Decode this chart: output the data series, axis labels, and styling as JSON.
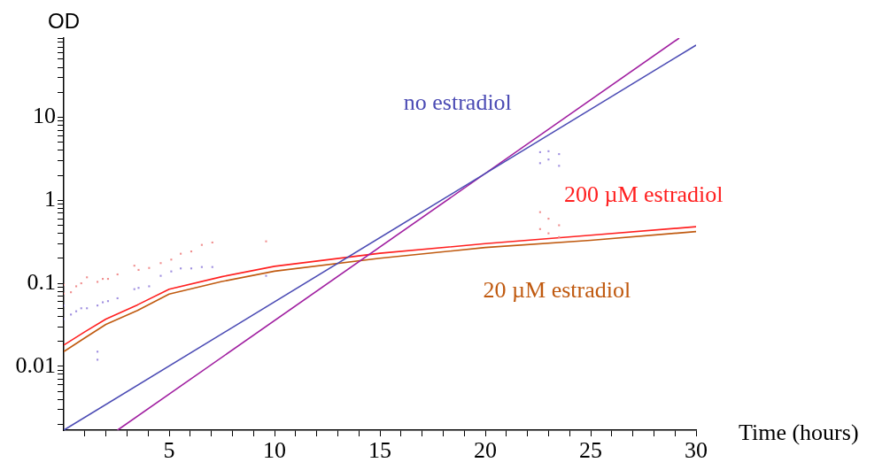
{
  "chart_data": {
    "type": "line",
    "xlabel": "Time (hours)",
    "ylabel": "OD",
    "log": "y",
    "grid": false,
    "legend": false,
    "marker": "none",
    "xlim": [
      0,
      30
    ],
    "ylim": [
      0.0017,
      90
    ],
    "xticks": [
      {
        "value": 1,
        "label": null
      },
      {
        "value": 2,
        "label": null
      },
      {
        "value": 3,
        "label": null
      },
      {
        "value": 4,
        "label": null
      },
      5,
      {
        "value": 6,
        "label": null
      },
      {
        "value": 7,
        "label": null
      },
      {
        "value": 8,
        "label": null
      },
      {
        "value": 9,
        "label": null
      },
      10,
      {
        "value": 11,
        "label": null
      },
      {
        "value": 12,
        "label": null
      },
      {
        "value": 13,
        "label": null
      },
      {
        "value": 14,
        "label": null
      },
      15,
      {
        "value": 16,
        "label": null
      },
      {
        "value": 17,
        "label": null
      },
      {
        "value": 18,
        "label": null
      },
      {
        "value": 19,
        "label": null
      },
      20,
      {
        "value": 21,
        "label": null
      },
      {
        "value": 22,
        "label": null
      },
      {
        "value": 23,
        "label": null
      },
      {
        "value": 24,
        "label": null
      },
      25,
      {
        "value": 26,
        "label": null
      },
      {
        "value": 27,
        "label": null
      },
      {
        "value": 28,
        "label": null
      },
      {
        "value": 29,
        "label": null
      },
      30
    ],
    "yticks": [
      {
        "value": 0.002,
        "label": null
      },
      {
        "value": 0.003,
        "label": null
      },
      {
        "value": 0.004,
        "label": null
      },
      {
        "value": 0.005,
        "label": null
      },
      {
        "value": 0.006,
        "label": null
      },
      {
        "value": 0.007,
        "label": null
      },
      {
        "value": 0.008,
        "label": null
      },
      {
        "value": 0.009,
        "label": null
      },
      0.01,
      {
        "value": 0.02,
        "label": null
      },
      {
        "value": 0.03,
        "label": null
      },
      {
        "value": 0.04,
        "label": null
      },
      {
        "value": 0.05,
        "label": null
      },
      {
        "value": 0.06,
        "label": null
      },
      {
        "value": 0.07,
        "label": null
      },
      {
        "value": 0.08,
        "label": null
      },
      {
        "value": 0.09,
        "label": null
      },
      0.1,
      {
        "value": 0.2,
        "label": null
      },
      {
        "value": 0.3,
        "label": null
      },
      {
        "value": 0.4,
        "label": null
      },
      {
        "value": 0.5,
        "label": null
      },
      {
        "value": 0.6,
        "label": null
      },
      {
        "value": 0.7,
        "label": null
      },
      {
        "value": 0.8,
        "label": null
      },
      {
        "value": 0.9,
        "label": null
      },
      1,
      {
        "value": 2,
        "label": null
      },
      {
        "value": 3,
        "label": null
      },
      {
        "value": 4,
        "label": null
      },
      {
        "value": 5,
        "label": null
      },
      {
        "value": 6,
        "label": null
      },
      {
        "value": 7,
        "label": null
      },
      {
        "value": 8,
        "label": null
      },
      {
        "value": 9,
        "label": null
      },
      10,
      {
        "value": 20,
        "label": null
      },
      {
        "value": 30,
        "label": null
      },
      {
        "value": 40,
        "label": null
      },
      {
        "value": 50,
        "label": null
      },
      {
        "value": 60,
        "label": null
      },
      {
        "value": 70,
        "label": null
      },
      {
        "value": 80,
        "label": null
      },
      {
        "value": 90,
        "label": null
      }
    ],
    "series": [
      {
        "type": "scatter",
        "color": "#f09090",
        "marker": "square",
        "x": [
          0,
          0,
          0.34,
          0.59,
          0.83,
          1.1,
          1.6,
          1.85,
          2.1,
          2.55,
          3.35,
          3.55,
          4.05,
          4.6,
          5.1,
          5.55,
          6.05,
          6.55,
          7.05,
          9.6,
          22.6,
          23.0,
          23.5,
          22.6,
          23.0,
          23.5
        ],
        "values": [
          0.096,
          0.075,
          0.078,
          0.092,
          0.1,
          0.118,
          0.104,
          0.113,
          0.113,
          0.128,
          0.163,
          0.145,
          0.153,
          0.175,
          0.193,
          0.227,
          0.242,
          0.29,
          0.31,
          0.32,
          0.72,
          0.6,
          0.5,
          0.45,
          0.4,
          0.36
        ]
      },
      {
        "type": "scatter",
        "color": "#a090e0",
        "marker": "square",
        "x": [
          0,
          0,
          0.34,
          0.59,
          0.83,
          1.1,
          1.6,
          1.6,
          1.6,
          1.85,
          2.1,
          2.55,
          3.35,
          3.55,
          4.05,
          4.6,
          5.1,
          5.55,
          6.05,
          6.55,
          7.05,
          9.6,
          22.6,
          23.0,
          23.5,
          22.6,
          23.0,
          23.5
        ],
        "values": [
          0.054,
          0.037,
          0.042,
          0.046,
          0.05,
          0.05,
          0.054,
          0.015,
          0.012,
          0.059,
          0.061,
          0.066,
          0.085,
          0.088,
          0.092,
          0.123,
          0.139,
          0.151,
          0.151,
          0.157,
          0.157,
          0.123,
          3.8,
          3.9,
          3.6,
          2.8,
          3.1,
          2.6
        ]
      },
      {
        "name": "no estradiol",
        "color": "#4b4bb4",
        "x": [
          0,
          30
        ],
        "values": [
          0.0017,
          74
        ]
      },
      {
        "color": "#a01ea0",
        "x": [
          2.55,
          29.2
        ],
        "values": [
          0.0017,
          90
        ]
      },
      {
        "name": "200 µM estradiol",
        "color": "#ff2020",
        "x": [
          0,
          1,
          2,
          3.5,
          5,
          7.5,
          10,
          15,
          20,
          25,
          30
        ],
        "values": [
          0.018,
          0.026,
          0.037,
          0.055,
          0.085,
          0.12,
          0.16,
          0.23,
          0.3,
          0.38,
          0.48
        ]
      },
      {
        "name": "20 µM estradiol",
        "color": "#c05a10",
        "x": [
          0,
          1,
          2,
          3.5,
          5,
          7.5,
          10,
          15,
          20,
          25,
          30
        ],
        "values": [
          0.015,
          0.022,
          0.032,
          0.047,
          0.074,
          0.105,
          0.14,
          0.2,
          0.27,
          0.33,
          0.42
        ]
      }
    ]
  }
}
